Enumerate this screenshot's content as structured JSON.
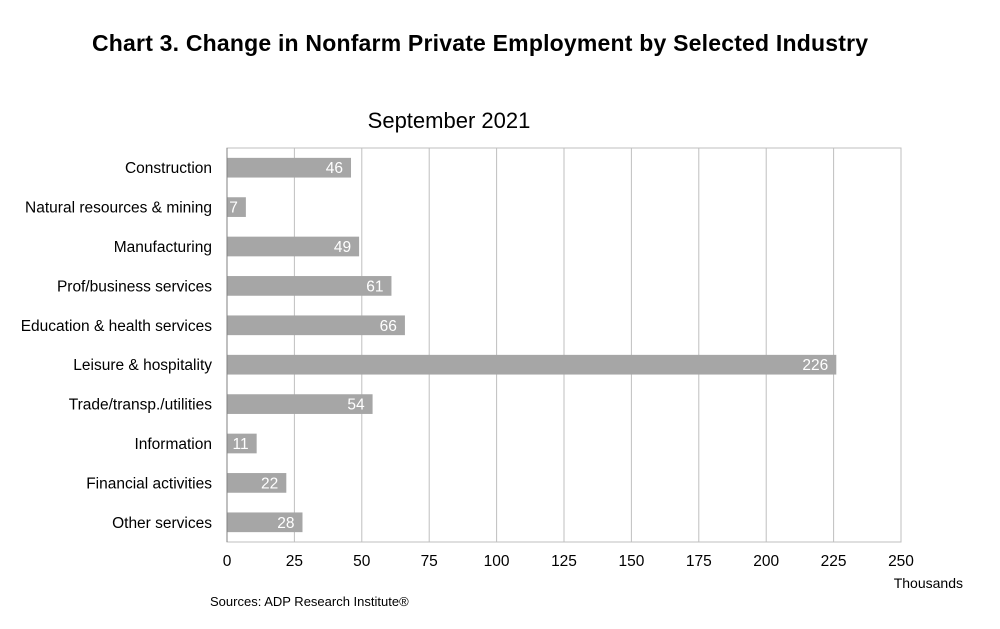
{
  "title": "Chart 3. Change in Nonfarm Private Employment by Selected Industry",
  "chart_data": {
    "type": "bar",
    "orientation": "horizontal",
    "subtitle": "September 2021",
    "categories": [
      "Construction",
      "Natural resources & mining",
      "Manufacturing",
      "Prof/business services",
      "Education & health services",
      "Leisure & hospitality",
      "Trade/transp./utilities",
      "Information",
      "Financial activities",
      "Other services"
    ],
    "values": [
      46,
      7,
      49,
      61,
      66,
      226,
      54,
      11,
      22,
      28
    ],
    "xlim": [
      0,
      250
    ],
    "xticks": [
      0,
      25,
      50,
      75,
      100,
      125,
      150,
      175,
      200,
      225,
      250
    ],
    "xunit": "Thousands",
    "grid": true,
    "legend": "none",
    "bar_color": "#a6a6a6",
    "source": "Sources: ADP Research Institute®"
  }
}
